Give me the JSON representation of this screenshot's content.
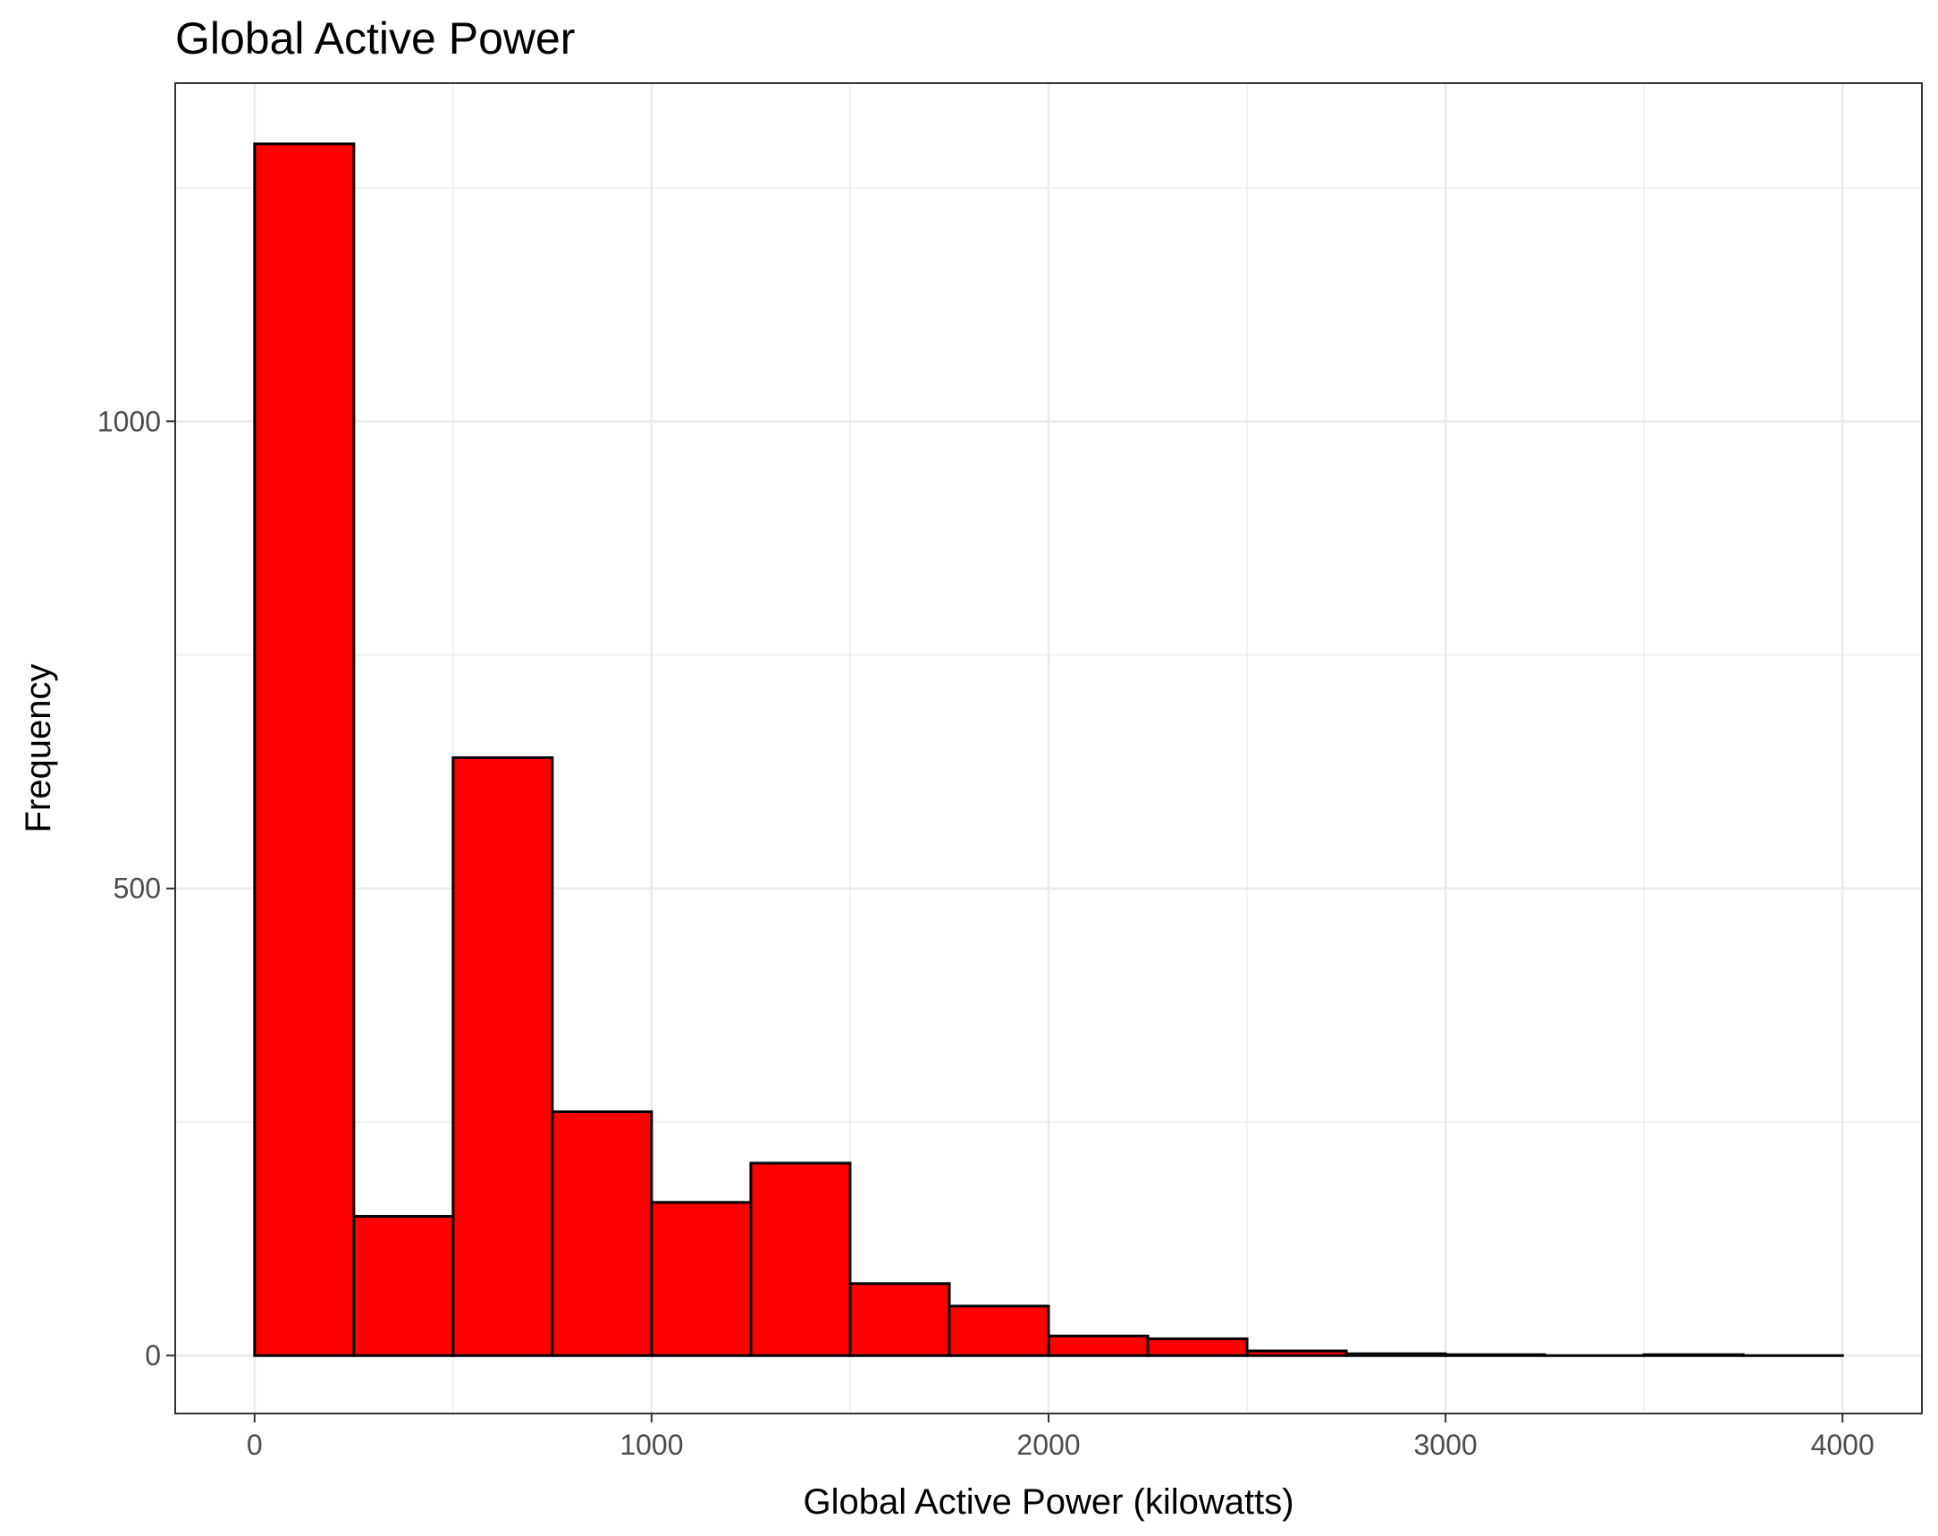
{
  "chart_data": {
    "type": "bar",
    "title": "Global Active Power",
    "xlabel": "Global Active Power (kilowatts)",
    "ylabel": "Frequency",
    "bin_width": 250,
    "bins": [
      {
        "x0": 0,
        "x1": 250,
        "count": 1297
      },
      {
        "x0": 250,
        "x1": 500,
        "count": 149
      },
      {
        "x0": 500,
        "x1": 750,
        "count": 640
      },
      {
        "x0": 750,
        "x1": 1000,
        "count": 261
      },
      {
        "x0": 1000,
        "x1": 1250,
        "count": 164
      },
      {
        "x0": 1250,
        "x1": 1500,
        "count": 206
      },
      {
        "x0": 1500,
        "x1": 1750,
        "count": 77
      },
      {
        "x0": 1750,
        "x1": 2000,
        "count": 53
      },
      {
        "x0": 2000,
        "x1": 2250,
        "count": 21
      },
      {
        "x0": 2250,
        "x1": 2500,
        "count": 18
      },
      {
        "x0": 2500,
        "x1": 2750,
        "count": 5
      },
      {
        "x0": 2750,
        "x1": 3000,
        "count": 2
      },
      {
        "x0": 3000,
        "x1": 3250,
        "count": 1
      },
      {
        "x0": 3250,
        "x1": 3500,
        "count": 0
      },
      {
        "x0": 3500,
        "x1": 3750,
        "count": 1
      },
      {
        "x0": 3750,
        "x1": 4000,
        "count": 0
      }
    ],
    "xlim": [
      -200,
      4200
    ],
    "ylim": [
      -62,
      1362
    ],
    "x_ticks": [
      0,
      1000,
      2000,
      3000,
      4000
    ],
    "x_tick_labels": [
      "0",
      "1000",
      "2000",
      "3000",
      "4000"
    ],
    "y_ticks": [
      0,
      500,
      1000
    ],
    "y_tick_labels": [
      "0",
      "500",
      "1000"
    ],
    "grid": true,
    "bar_fill": "#ff0000",
    "bar_stroke": "#000000",
    "grid_color": "#ebebeb",
    "tick_color": "#333333",
    "tick_label_color": "#4d4d4d"
  }
}
